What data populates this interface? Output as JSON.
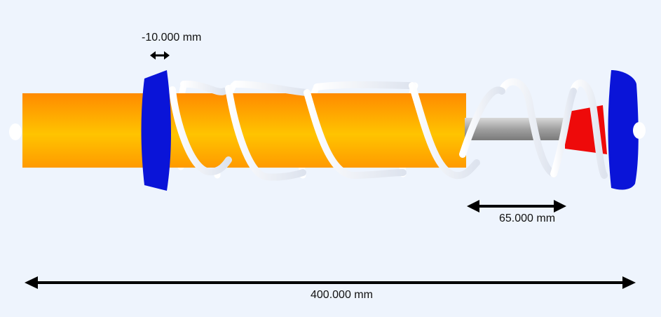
{
  "dimensions": {
    "preload": "-10.000 mm",
    "travel": "65.000 mm",
    "overall_length": "400.000 mm"
  },
  "colors": {
    "background": "#eef4fd",
    "body": "#ffa500",
    "spring": "#ffffff",
    "spring_seat": "#0a14d8",
    "rod": "#a8a8a8",
    "bump_stop": "#ee0a0a",
    "dimension_arrow": "#000000"
  }
}
